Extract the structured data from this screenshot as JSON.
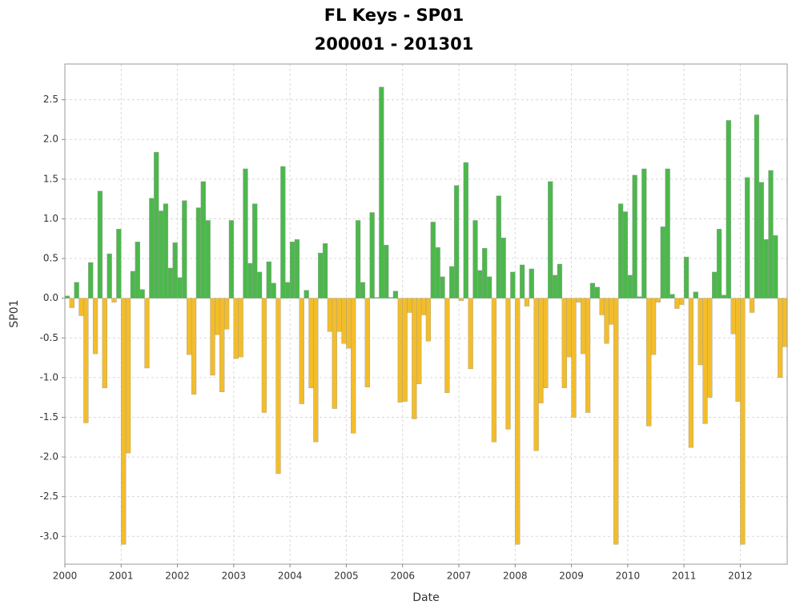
{
  "chart_data": {
    "type": "bar",
    "title": "FL Keys - SP01",
    "subtitle": "200001 - 201301",
    "x_label": "Date",
    "y_label": "SP01",
    "categories": [
      "2000",
      null,
      null,
      null,
      null,
      null,
      null,
      null,
      null,
      null,
      null,
      null,
      "2001",
      null,
      null,
      null,
      null,
      null,
      null,
      null,
      null,
      null,
      null,
      null,
      "2002",
      null,
      null,
      null,
      null,
      null,
      null,
      null,
      null,
      null,
      null,
      null,
      "2003",
      null,
      null,
      null,
      null,
      null,
      null,
      null,
      null,
      null,
      null,
      null,
      "2004",
      null,
      null,
      null,
      null,
      null,
      null,
      null,
      null,
      null,
      null,
      null,
      "2005",
      null,
      null,
      null,
      null,
      null,
      null,
      null,
      null,
      null,
      null,
      null,
      "2006",
      null,
      null,
      null,
      null,
      null,
      null,
      null,
      null,
      null,
      null,
      null,
      "2007",
      null,
      null,
      null,
      null,
      null,
      null,
      null,
      null,
      null,
      null,
      null,
      "2008",
      null,
      null,
      null,
      null,
      null,
      null,
      null,
      null,
      null,
      null,
      null,
      "2009",
      null,
      null,
      null,
      null,
      null,
      null,
      null,
      null,
      null,
      null,
      null,
      "2010",
      null,
      null,
      null,
      null,
      null,
      null,
      null,
      null,
      null,
      null,
      null,
      "2011",
      null,
      null,
      null,
      null,
      null,
      null,
      null,
      null,
      null,
      null,
      null,
      "2012",
      null,
      null,
      null,
      null,
      null,
      null,
      null,
      null,
      null
    ],
    "values": [
      0.03,
      -0.12,
      0.2,
      -0.22,
      -1.57,
      0.45,
      -0.7,
      1.35,
      -1.13,
      0.56,
      -0.05,
      0.87,
      -3.1,
      -1.95,
      0.34,
      0.71,
      0.11,
      -0.88,
      1.26,
      1.84,
      1.1,
      1.19,
      0.38,
      0.7,
      0.26,
      1.23,
      -0.71,
      -1.21,
      1.14,
      1.47,
      0.98,
      -0.97,
      -0.46,
      -1.18,
      -0.39,
      0.98,
      -0.76,
      -0.74,
      1.63,
      0.44,
      1.19,
      0.33,
      -1.44,
      0.46,
      0.19,
      -2.21,
      1.66,
      0.2,
      0.71,
      0.74,
      -1.33,
      0.1,
      -1.13,
      -1.81,
      0.57,
      0.69,
      -0.42,
      -1.39,
      -0.42,
      -0.57,
      -0.63,
      -1.7,
      0.98,
      0.2,
      -1.12,
      1.08,
      0.01,
      2.66,
      0.67,
      0.01,
      0.09,
      -1.31,
      -1.3,
      -0.18,
      -1.52,
      -1.08,
      -0.21,
      -0.54,
      0.96,
      0.64,
      0.27,
      -1.19,
      0.4,
      1.42,
      -0.03,
      1.71,
      -0.89,
      0.98,
      0.35,
      0.63,
      0.27,
      -1.81,
      1.29,
      0.76,
      -1.65,
      0.33,
      -3.1,
      0.42,
      -0.1,
      0.37,
      -1.92,
      -1.32,
      -1.13,
      1.47,
      0.29,
      0.43,
      -1.13,
      -0.74,
      -1.5,
      -0.05,
      -0.7,
      -1.44,
      0.19,
      0.14,
      -0.21,
      -0.57,
      -0.33,
      -3.1,
      1.19,
      1.09,
      0.29,
      1.55,
      0.02,
      1.63,
      -1.61,
      -0.71,
      -0.05,
      0.9,
      1.63,
      0.05,
      -0.13,
      -0.08,
      0.52,
      -1.88,
      0.08,
      -0.84,
      -1.58,
      -1.25,
      0.33,
      0.87,
      0.04,
      2.24,
      -0.45,
      -1.3,
      -3.1,
      1.52,
      -0.18,
      2.31,
      1.46,
      0.74,
      1.61,
      0.79,
      -1.0,
      -0.61
    ],
    "positive_color": "#4cb84c",
    "negative_color": "#f3bd2a",
    "ylim": [
      -3.35,
      2.95
    ],
    "yticks": [
      {
        "value": -3,
        "label": "-3.0"
      },
      -2.5,
      {
        "value": -2,
        "label": "-2.0"
      },
      -1.5,
      {
        "value": -1,
        "label": "-1.0"
      },
      -0.5,
      {
        "value": 0,
        "label": "0.0"
      },
      0.5,
      {
        "value": 1,
        "label": "1.0"
      },
      1.5,
      {
        "value": 2,
        "label": "2.0"
      },
      2.5
    ],
    "grid": true
  }
}
